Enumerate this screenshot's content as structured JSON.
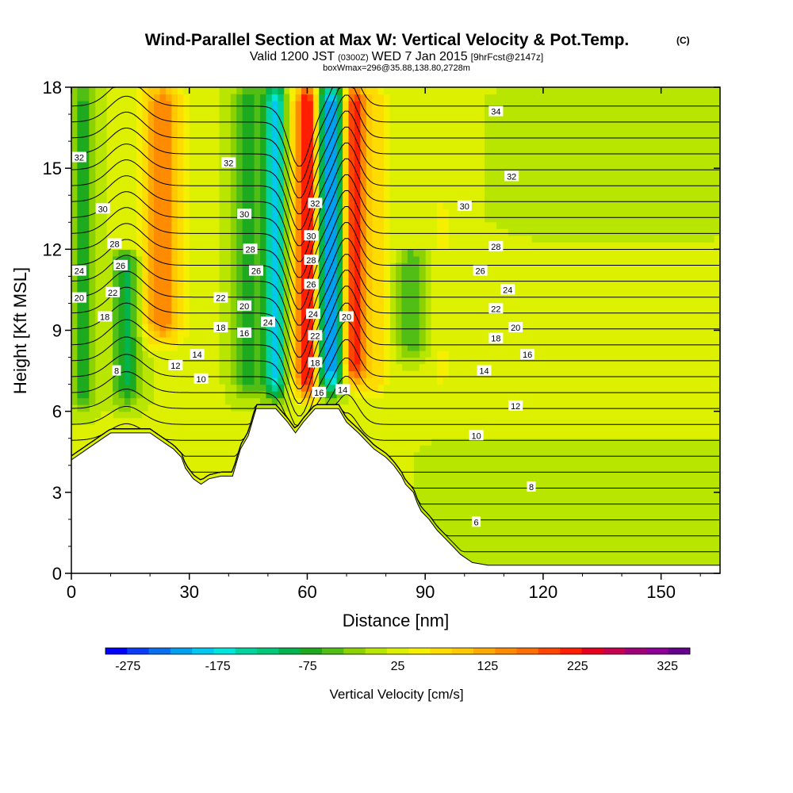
{
  "chart_data": {
    "type": "heatmap",
    "title": "Wind-Parallel Section at Max W: Vertical Velocity & Pot.Temp.",
    "title_mark": "(C)",
    "subtitle": {
      "valid": "Valid 1200 JST",
      "utc": "(0300Z)",
      "date": "WED 7 Jan 2015",
      "fcst": "[9hrFcst@2147z]"
    },
    "box_info": "boxWmax=296@35.88,138.80,2728m",
    "xlabel": "Distance [nm]",
    "ylabel": "Height [Kft MSL]",
    "xlim": [
      0,
      165
    ],
    "ylim": [
      0,
      18
    ],
    "x_ticks": [
      0,
      30,
      60,
      90,
      120,
      150
    ],
    "y_ticks": [
      0,
      3,
      6,
      9,
      12,
      15,
      18
    ],
    "colorbar": {
      "label": "Vertical Velocity [cm/s]",
      "range": [
        -300,
        350
      ],
      "tick_values": [
        -275,
        -175,
        -75,
        25,
        125,
        225,
        325
      ],
      "tick_labels": [
        "-275",
        "-175",
        "-75",
        "25",
        "125",
        "225",
        "325"
      ],
      "colors": [
        "#0000ff",
        "#0a3cf5",
        "#0a6ef0",
        "#00a0f0",
        "#00c8f0",
        "#00e6dc",
        "#00d2a0",
        "#00c878",
        "#00b450",
        "#1eaa1e",
        "#50be14",
        "#8cd200",
        "#b9e600",
        "#dcf000",
        "#f5f000",
        "#ffdc00",
        "#ffc800",
        "#ffaa00",
        "#ff8c00",
        "#ff6e00",
        "#ff4600",
        "#ff1e00",
        "#e6001e",
        "#c80050",
        "#a00078",
        "#8c0096",
        "#64008c"
      ]
    },
    "velocity_structure": [
      {
        "x_center": 3,
        "x_halfwidth": 3,
        "y_min": 5.5,
        "y_max": 18,
        "value": -70
      },
      {
        "x_center": 14,
        "x_halfwidth": 3.5,
        "y_min": 5.8,
        "y_max": 12,
        "value": -95
      },
      {
        "x_center": 23,
        "x_halfwidth": 5,
        "y_min": 8,
        "y_max": 18,
        "value": 150
      },
      {
        "x_center": 33,
        "x_halfwidth": 5,
        "y_min": 5,
        "y_max": 18,
        "value": 20
      },
      {
        "x_center": 45,
        "x_halfwidth": 4,
        "y_min": 6,
        "y_max": 18,
        "value": -70
      },
      {
        "x_center": 52,
        "x_halfwidth": 2.8,
        "y_min": 6,
        "y_max": 18,
        "value": -190
      },
      {
        "x_center": 55.5,
        "x_halfwidth": 2.5,
        "y_min": 6,
        "y_max": 18,
        "value": 60
      },
      {
        "x_center": 60,
        "x_halfwidth": 2.6,
        "y_min": 6,
        "y_max": 18,
        "value": 240
      },
      {
        "x_center": 66,
        "x_halfwidth": 3,
        "y_min": 6.2,
        "y_max": 18,
        "value": -225
      },
      {
        "x_center": 72,
        "x_halfwidth": 2.6,
        "y_min": 6.5,
        "y_max": 18,
        "value": 220
      },
      {
        "x_center": 77,
        "x_halfwidth": 3.5,
        "y_min": 6,
        "y_max": 18,
        "value": 80
      },
      {
        "x_center": 87,
        "x_halfwidth": 4,
        "y_min": 7.5,
        "y_max": 12,
        "value": -60
      },
      {
        "x_center": 94,
        "x_halfwidth": 4,
        "y_min": 6,
        "y_max": 14,
        "value": 40
      },
      {
        "x_center": 135,
        "x_halfwidth": 30,
        "y_min": 0,
        "y_max": 5,
        "value": -10
      },
      {
        "x_center": 140,
        "x_halfwidth": 25,
        "y_min": 12,
        "y_max": 18,
        "value": 0
      }
    ],
    "terrain_heights": [
      {
        "x": 0,
        "h": 4.2
      },
      {
        "x": 4,
        "h": 4.6
      },
      {
        "x": 7,
        "h": 4.9
      },
      {
        "x": 10,
        "h": 5.2
      },
      {
        "x": 20,
        "h": 5.2
      },
      {
        "x": 23,
        "h": 4.9
      },
      {
        "x": 26,
        "h": 4.6
      },
      {
        "x": 28,
        "h": 4.3
      },
      {
        "x": 29,
        "h": 3.9
      },
      {
        "x": 31,
        "h": 3.5
      },
      {
        "x": 33,
        "h": 3.3
      },
      {
        "x": 35,
        "h": 3.5
      },
      {
        "x": 38,
        "h": 3.6
      },
      {
        "x": 41,
        "h": 3.6
      },
      {
        "x": 42,
        "h": 4.1
      },
      {
        "x": 43,
        "h": 4.6
      },
      {
        "x": 45,
        "h": 5.1
      },
      {
        "x": 46,
        "h": 5.6
      },
      {
        "x": 47,
        "h": 6.1
      },
      {
        "x": 52,
        "h": 6.1
      },
      {
        "x": 55,
        "h": 5.6
      },
      {
        "x": 57,
        "h": 5.2
      },
      {
        "x": 59,
        "h": 5.6
      },
      {
        "x": 62,
        "h": 6.1
      },
      {
        "x": 68,
        "h": 6.1
      },
      {
        "x": 70,
        "h": 5.6
      },
      {
        "x": 73,
        "h": 5.2
      },
      {
        "x": 75,
        "h": 4.9
      },
      {
        "x": 77,
        "h": 4.6
      },
      {
        "x": 80,
        "h": 4.3
      },
      {
        "x": 82,
        "h": 4.0
      },
      {
        "x": 84,
        "h": 3.6
      },
      {
        "x": 85,
        "h": 3.3
      },
      {
        "x": 87,
        "h": 3.0
      },
      {
        "x": 88,
        "h": 2.6
      },
      {
        "x": 89,
        "h": 2.3
      },
      {
        "x": 91,
        "h": 2.0
      },
      {
        "x": 93,
        "h": 1.6
      },
      {
        "x": 95,
        "h": 1.3
      },
      {
        "x": 97,
        "h": 1.0
      },
      {
        "x": 99,
        "h": 0.7
      },
      {
        "x": 102,
        "h": 0.4
      },
      {
        "x": 106,
        "h": 0.3
      },
      {
        "x": 165,
        "h": 0.3
      }
    ],
    "theta_contours": {
      "label": "Pot.Temp.",
      "levels": [
        6,
        7,
        8,
        9,
        10,
        11,
        12,
        13,
        14,
        15,
        16,
        17,
        18,
        19,
        20,
        21,
        22,
        23,
        24,
        25,
        26,
        27,
        28,
        29,
        30,
        31,
        32,
        33,
        34
      ]
    },
    "contour_labels": [
      {
        "text": "32",
        "x": 2,
        "y": 15.4
      },
      {
        "text": "30",
        "x": 8,
        "y": 13.5
      },
      {
        "text": "28",
        "x": 11,
        "y": 12.2
      },
      {
        "text": "26",
        "x": 12.5,
        "y": 11.4
      },
      {
        "text": "24",
        "x": 2,
        "y": 11.2
      },
      {
        "text": "22",
        "x": 10.5,
        "y": 10.4
      },
      {
        "text": "20",
        "x": 2,
        "y": 10.2
      },
      {
        "text": "18",
        "x": 8.5,
        "y": 9.5
      },
      {
        "text": "8",
        "x": 11.5,
        "y": 7.5
      },
      {
        "text": "12",
        "x": 26.5,
        "y": 7.7
      },
      {
        "text": "14",
        "x": 32,
        "y": 8.1
      },
      {
        "text": "10",
        "x": 33,
        "y": 7.2
      },
      {
        "text": "22",
        "x": 38,
        "y": 10.2
      },
      {
        "text": "18",
        "x": 38,
        "y": 9.1
      },
      {
        "text": "20",
        "x": 44,
        "y": 9.9
      },
      {
        "text": "16",
        "x": 44,
        "y": 8.9
      },
      {
        "text": "24",
        "x": 50,
        "y": 9.3
      },
      {
        "text": "32",
        "x": 40,
        "y": 15.2
      },
      {
        "text": "30",
        "x": 44,
        "y": 13.3
      },
      {
        "text": "28",
        "x": 45.5,
        "y": 12
      },
      {
        "text": "26",
        "x": 47,
        "y": 11.2
      },
      {
        "text": "32",
        "x": 62,
        "y": 13.7
      },
      {
        "text": "30",
        "x": 61,
        "y": 12.5
      },
      {
        "text": "28",
        "x": 61,
        "y": 11.6
      },
      {
        "text": "26",
        "x": 61,
        "y": 10.7
      },
      {
        "text": "24",
        "x": 61.5,
        "y": 9.6
      },
      {
        "text": "22",
        "x": 62,
        "y": 8.8
      },
      {
        "text": "18",
        "x": 62,
        "y": 7.8
      },
      {
        "text": "16",
        "x": 63,
        "y": 6.7
      },
      {
        "text": "20",
        "x": 70,
        "y": 9.5
      },
      {
        "text": "14",
        "x": 69,
        "y": 6.8
      },
      {
        "text": "34",
        "x": 108,
        "y": 17.1
      },
      {
        "text": "32",
        "x": 112,
        "y": 14.7
      },
      {
        "text": "30",
        "x": 100,
        "y": 13.6
      },
      {
        "text": "28",
        "x": 108,
        "y": 12.1
      },
      {
        "text": "26",
        "x": 104,
        "y": 11.2
      },
      {
        "text": "24",
        "x": 111,
        "y": 10.5
      },
      {
        "text": "22",
        "x": 108,
        "y": 9.8
      },
      {
        "text": "20",
        "x": 113,
        "y": 9.1
      },
      {
        "text": "18",
        "x": 108,
        "y": 8.7
      },
      {
        "text": "16",
        "x": 116,
        "y": 8.1
      },
      {
        "text": "14",
        "x": 105,
        "y": 7.5
      },
      {
        "text": "12",
        "x": 113,
        "y": 6.2
      },
      {
        "text": "10",
        "x": 103,
        "y": 5.1
      },
      {
        "text": "8",
        "x": 117,
        "y": 3.2
      },
      {
        "text": "6",
        "x": 103,
        "y": 1.9
      }
    ],
    "grid": false,
    "legend": "none"
  }
}
